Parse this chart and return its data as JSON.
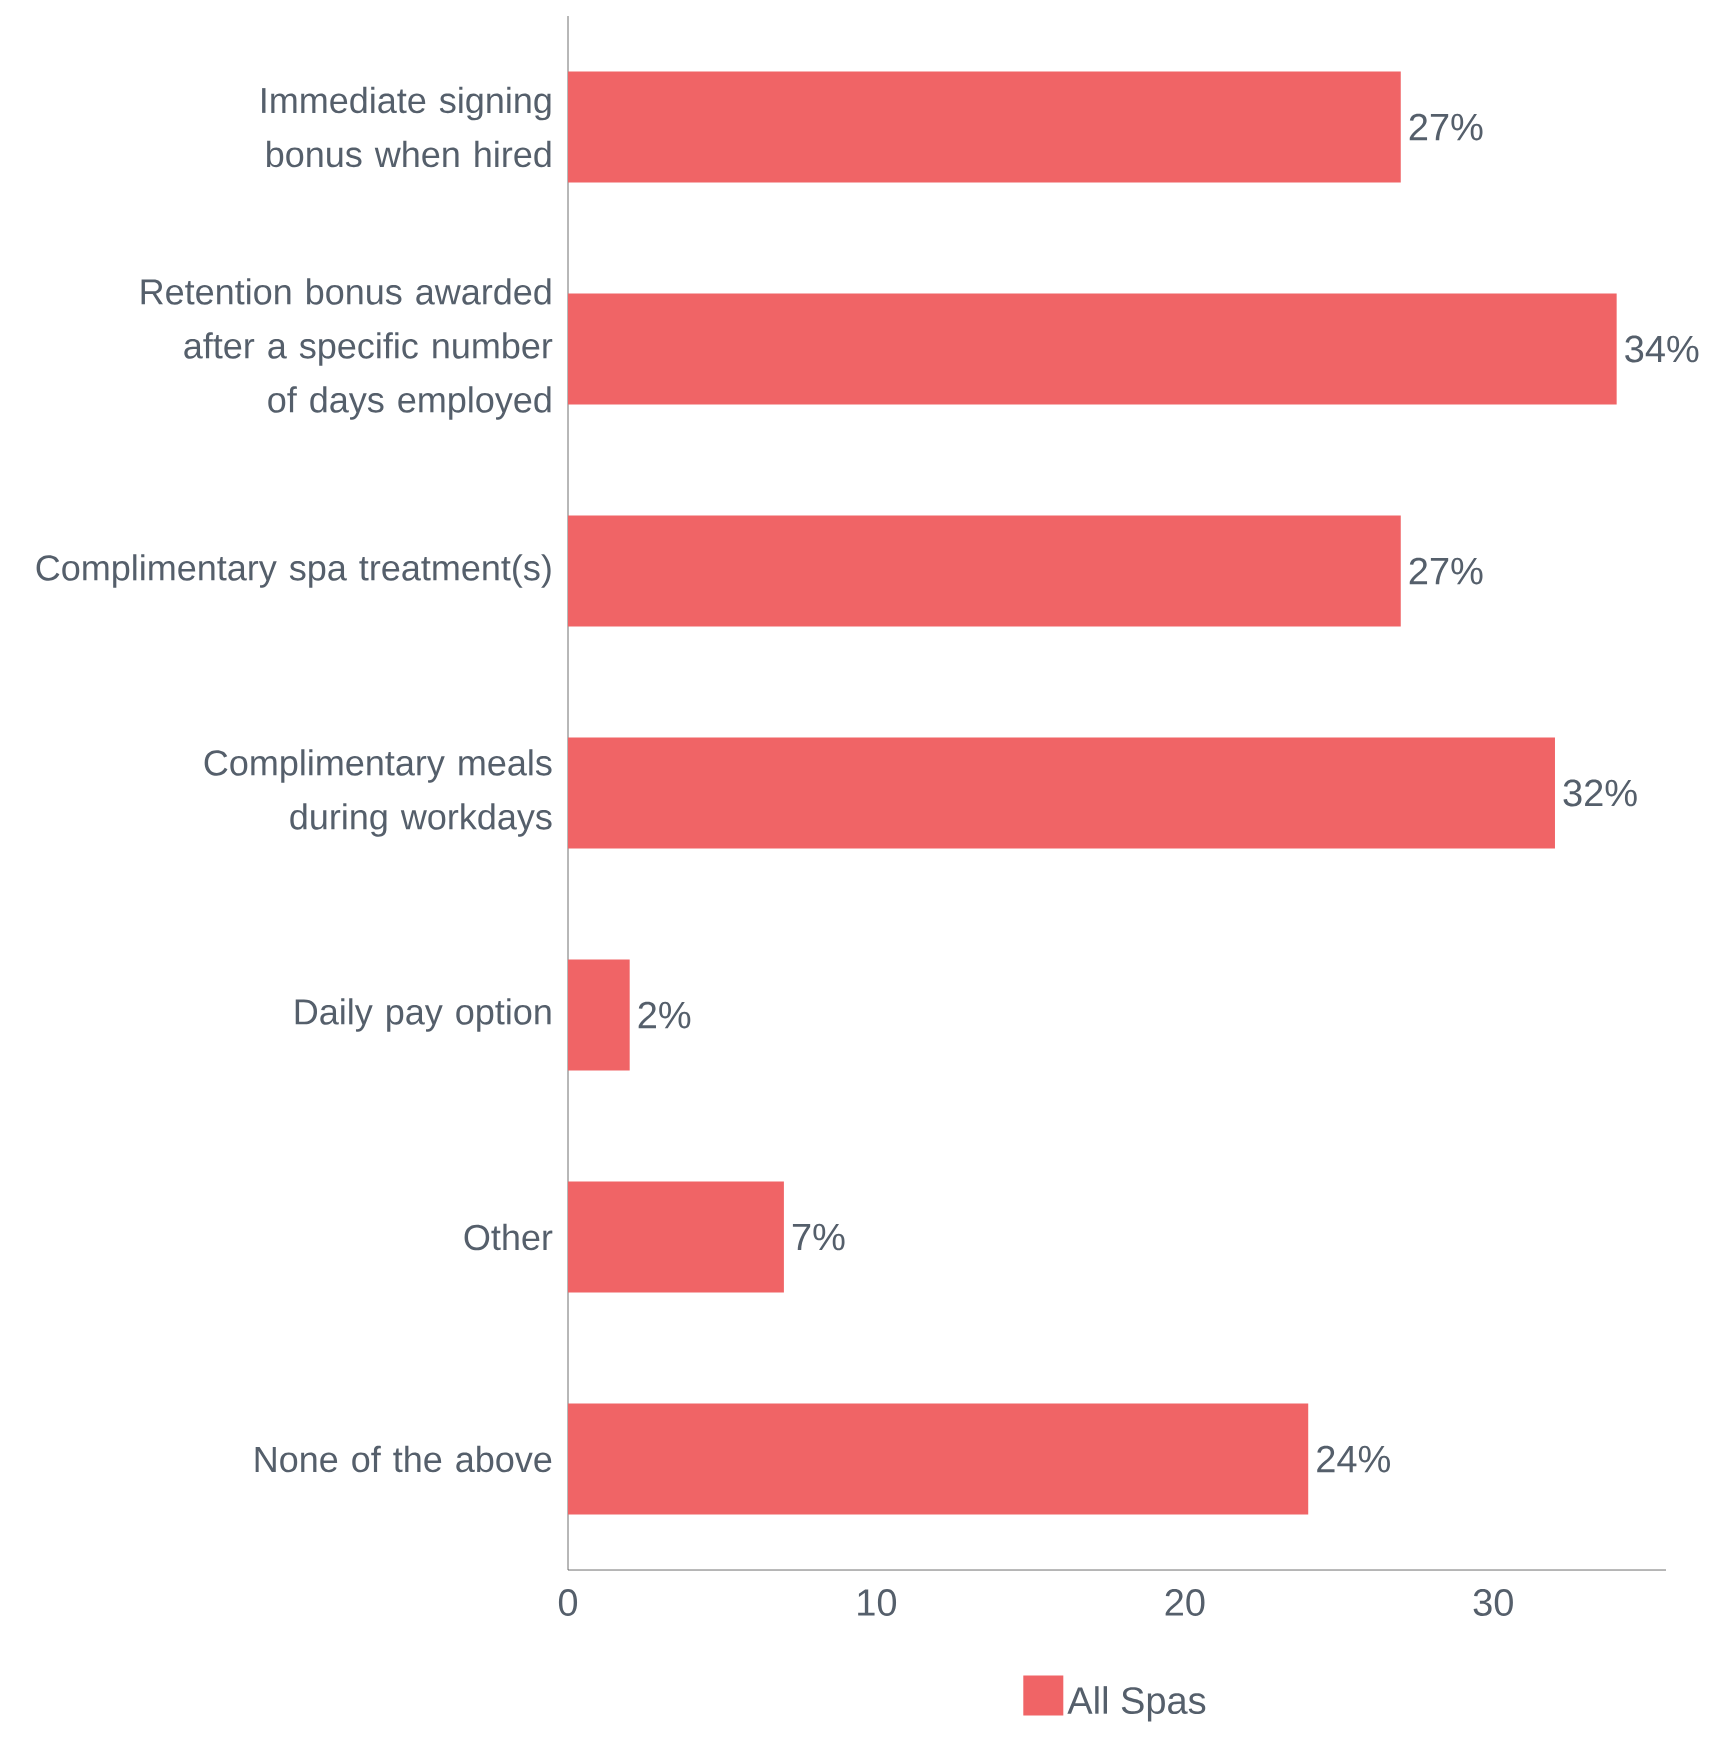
{
  "chart_data": {
    "type": "bar",
    "orientation": "horizontal",
    "categories": [
      "Immediate signing bonus when hired",
      "Retention bonus awarded after a specific number of days employed",
      "Complimentary spa treatment(s)",
      "Complimentary meals during workdays",
      "Daily pay option",
      "Other",
      "None of the above"
    ],
    "series": [
      {
        "name": "All Spas",
        "color": "#f06466",
        "values": [
          27,
          34,
          27,
          32,
          2,
          7,
          24
        ],
        "value_labels": [
          "27%",
          "34%",
          "27%",
          "32%",
          "2%",
          "7%",
          "24%"
        ]
      }
    ],
    "xlim": [
      0,
      35.6
    ],
    "xticks": [
      0,
      10,
      20,
      30
    ],
    "grid": false,
    "legend": "bottom"
  }
}
